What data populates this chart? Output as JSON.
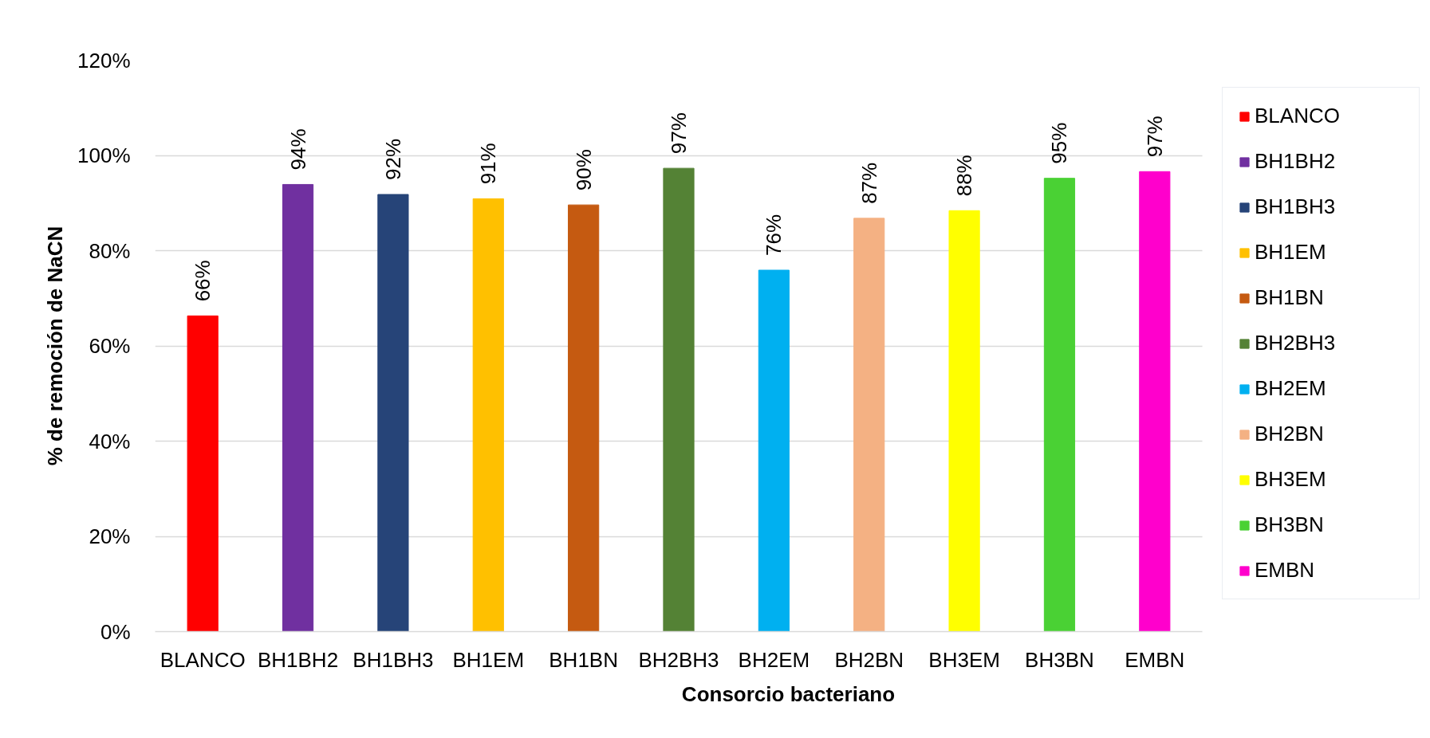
{
  "chart_data": {
    "type": "bar",
    "xlabel": "Consorcio bacteriano",
    "ylabel": "% de remoción de NaCN",
    "categories": [
      "BLANCO",
      "BH1BH2",
      "BH1BH3",
      "BH1EM",
      "BH1BN",
      "BH2BH3",
      "BH2EM",
      "BH2BN",
      "BH3EM",
      "BH3BN",
      "EMBN"
    ],
    "series": [
      {
        "name": "BLANCO",
        "color": "#ff0000",
        "values": [
          66.3,
          null,
          null,
          null,
          null,
          null,
          null,
          null,
          null,
          null,
          null
        ],
        "value_labels": [
          "66%",
          null,
          null,
          null,
          null,
          null,
          null,
          null,
          null,
          null,
          null
        ]
      },
      {
        "name": "BH1BH2",
        "color": "#7030a0",
        "values": [
          null,
          93.9,
          null,
          null,
          null,
          null,
          null,
          null,
          null,
          null,
          null
        ],
        "value_labels": [
          null,
          "94%",
          null,
          null,
          null,
          null,
          null,
          null,
          null,
          null,
          null
        ]
      },
      {
        "name": "BH1BH3",
        "color": "#264478",
        "values": [
          null,
          null,
          91.8,
          null,
          null,
          null,
          null,
          null,
          null,
          null,
          null
        ],
        "value_labels": [
          null,
          null,
          "92%",
          null,
          null,
          null,
          null,
          null,
          null,
          null,
          null
        ]
      },
      {
        "name": "BH1EM",
        "color": "#ffc000",
        "values": [
          null,
          null,
          null,
          90.9,
          null,
          null,
          null,
          null,
          null,
          null,
          null
        ],
        "value_labels": [
          null,
          null,
          null,
          "91%",
          null,
          null,
          null,
          null,
          null,
          null,
          null
        ]
      },
      {
        "name": "BH1BN",
        "color": "#c55a11",
        "values": [
          null,
          null,
          null,
          null,
          89.6,
          null,
          null,
          null,
          null,
          null,
          null
        ],
        "value_labels": [
          null,
          null,
          null,
          null,
          "90%",
          null,
          null,
          null,
          null,
          null,
          null
        ]
      },
      {
        "name": "BH2BH3",
        "color": "#548235",
        "values": [
          null,
          null,
          null,
          null,
          null,
          97.3,
          null,
          null,
          null,
          null,
          null
        ],
        "value_labels": [
          null,
          null,
          null,
          null,
          null,
          "97%",
          null,
          null,
          null,
          null,
          null
        ]
      },
      {
        "name": "BH2EM",
        "color": "#00b0f0",
        "values": [
          null,
          null,
          null,
          null,
          null,
          null,
          75.9,
          null,
          null,
          null,
          null
        ],
        "value_labels": [
          null,
          null,
          null,
          null,
          null,
          null,
          "76%",
          null,
          null,
          null,
          null
        ]
      },
      {
        "name": "BH2BN",
        "color": "#f4b183",
        "values": [
          null,
          null,
          null,
          null,
          null,
          null,
          null,
          86.8,
          null,
          null,
          null
        ],
        "value_labels": [
          null,
          null,
          null,
          null,
          null,
          null,
          null,
          "87%",
          null,
          null,
          null
        ]
      },
      {
        "name": "BH3EM",
        "color": "#ffff00",
        "values": [
          null,
          null,
          null,
          null,
          null,
          null,
          null,
          null,
          88.4,
          null,
          null
        ],
        "value_labels": [
          null,
          null,
          null,
          null,
          null,
          null,
          null,
          null,
          "88%",
          null,
          null
        ]
      },
      {
        "name": "BH3BN",
        "color": "#4ad134",
        "values": [
          null,
          null,
          null,
          null,
          null,
          null,
          null,
          null,
          null,
          95.2,
          null
        ],
        "value_labels": [
          null,
          null,
          null,
          null,
          null,
          null,
          null,
          null,
          null,
          "95%",
          null
        ]
      },
      {
        "name": "EMBN",
        "color": "#ff00cc",
        "values": [
          null,
          null,
          null,
          null,
          null,
          null,
          null,
          null,
          null,
          null,
          96.6
        ],
        "value_labels": [
          null,
          null,
          null,
          null,
          null,
          null,
          null,
          null,
          null,
          null,
          "97%"
        ]
      }
    ],
    "ylim": [
      0,
      120
    ],
    "yticks": [
      {
        "value": 0,
        "label": "0%"
      },
      {
        "value": 20,
        "label": "20%"
      },
      {
        "value": 40,
        "label": "40%"
      },
      {
        "value": 60,
        "label": "60%"
      },
      {
        "value": 80,
        "label": "80%"
      },
      {
        "value": 100,
        "label": "100%"
      },
      {
        "value": 120,
        "label": "120%"
      }
    ],
    "grid": "y",
    "legend": "right"
  }
}
